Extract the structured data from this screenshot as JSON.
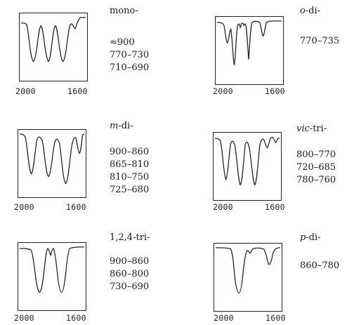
{
  "panels": [
    {
      "id": "mono",
      "label_prefix": "",
      "label_suffix": "mono-",
      "ranges": [
        "≈900",
        "770–730",
        "710–690"
      ],
      "ticks": [
        "2000",
        "1600"
      ]
    },
    {
      "id": "o-di",
      "label_prefix": "o",
      "label_suffix": "-di-",
      "ranges": [
        "770–735"
      ],
      "ticks": [
        "2000",
        "1600"
      ]
    },
    {
      "id": "m-di",
      "label_prefix": "m",
      "label_suffix": "-di-",
      "ranges": [
        "900–860",
        "865–810",
        "810–750",
        "725–680"
      ],
      "ticks": [
        "2000",
        "1600"
      ]
    },
    {
      "id": "vic-tri",
      "label_prefix": "vic",
      "label_suffix": "-tri-",
      "ranges": [
        "800–770",
        "720–685",
        "780–760"
      ],
      "ticks": [
        "2000",
        "1600"
      ]
    },
    {
      "id": "124-tri",
      "label_prefix": "",
      "label_suffix": "1,2,4-tri-",
      "ranges": [
        "900–860",
        "860–800",
        "730–690"
      ],
      "ticks": [
        "2000",
        "1600"
      ]
    },
    {
      "id": "p-di",
      "label_prefix": "p",
      "label_suffix": "-di-",
      "ranges": [
        "860–780"
      ],
      "ticks": [
        "2000",
        "1600"
      ]
    }
  ]
}
